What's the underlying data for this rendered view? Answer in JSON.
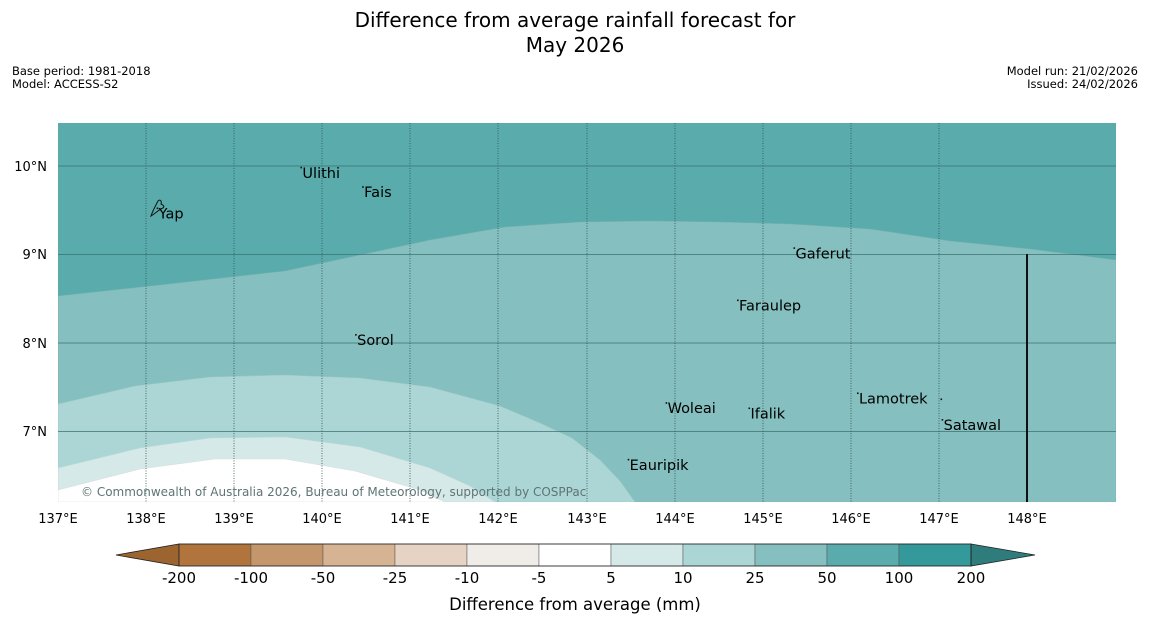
{
  "title": {
    "line1": "Difference from average rainfall forecast for",
    "line2": "May 2026"
  },
  "info": {
    "base_period": "Base period: 1981-2018",
    "model": "Model: ACCESS-S2",
    "model_run": "Model run: 21/02/2026",
    "issued": "Issued: 24/02/2026"
  },
  "map": {
    "lat_ticks": [
      "10°N",
      "9°N",
      "8°N",
      "7°N"
    ],
    "lon_ticks": [
      "137°E",
      "138°E",
      "139°E",
      "140°E",
      "141°E",
      "142°E",
      "143°E",
      "144°E",
      "145°E",
      "146°E",
      "147°E",
      "148°E"
    ],
    "places": [
      {
        "name": "Ulithi",
        "lon": 139.76,
        "lat": 9.98
      },
      {
        "name": "Fais",
        "lon": 140.46,
        "lat": 9.76
      },
      {
        "name": "Yap",
        "lon": 138.13,
        "lat": 9.52
      },
      {
        "name": "Gaferut",
        "lon": 145.35,
        "lat": 9.07
      },
      {
        "name": "Faraulep",
        "lon": 144.71,
        "lat": 8.48
      },
      {
        "name": "Sorol",
        "lon": 140.38,
        "lat": 8.09
      },
      {
        "name": "Lamotrek",
        "lon": 146.07,
        "lat": 7.43
      },
      {
        "name": "Woleai",
        "lon": 143.9,
        "lat": 7.32
      },
      {
        "name": "Ifalik",
        "lon": 144.84,
        "lat": 7.26
      },
      {
        "name": "Satawal",
        "lon": 147.03,
        "lat": 7.13
      },
      {
        "name": "Eauripik",
        "lon": 143.47,
        "lat": 6.68
      }
    ],
    "copyright": "© Commonwealth of Australia 2026, Bureau of Meteorology, supported by COSPPac"
  },
  "colorbar": {
    "label": "Difference from average (mm)",
    "ticks": [
      "-200",
      "-100",
      "-50",
      "-25",
      "-10",
      "-5",
      "5",
      "10",
      "25",
      "50",
      "100",
      "200"
    ],
    "colors": [
      "#9c6530",
      "#b0743c",
      "#c4966b",
      "#d6b393",
      "#e6d3c3",
      "#f0ede8",
      "#ffffff",
      "#d5e9e8",
      "#acd6d5",
      "#85bfbf",
      "#5aabab",
      "#34999a",
      "#2f7c7c"
    ]
  }
}
